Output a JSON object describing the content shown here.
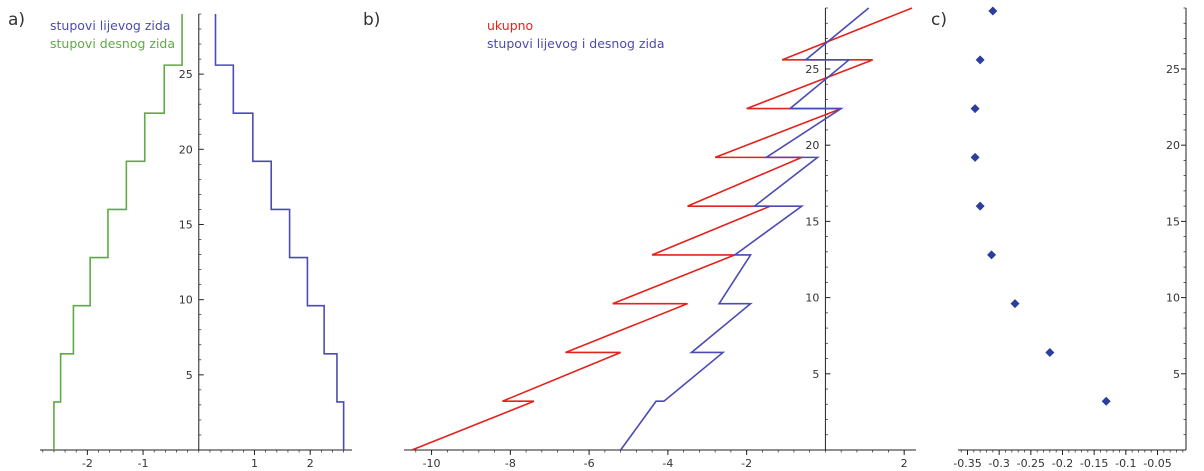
{
  "panel_labels": [
    "a)",
    "b)",
    "c)"
  ],
  "colors": {
    "blue": "#4b4bb3",
    "green": "#5faa46",
    "red": "#e3231c",
    "axis": "#222222",
    "marker": "#2b3e9e"
  },
  "chart_data": [
    {
      "type": "line",
      "label": "a)",
      "xlim": [
        -2.85,
        2.75
      ],
      "ylim": [
        0,
        29
      ],
      "xticks": [
        -2,
        -1,
        1,
        2
      ],
      "yticks": [
        5,
        10,
        15,
        20,
        25
      ],
      "series": [
        {
          "name": "stupovi lijevog zida",
          "color": "#4b4bb3",
          "points": [
            [
              0.3,
              29
            ],
            [
              0.3,
              25.6
            ],
            [
              0.62,
              25.6
            ],
            [
              0.62,
              22.4
            ],
            [
              0.97,
              22.4
            ],
            [
              0.97,
              19.2
            ],
            [
              1.3,
              19.2
            ],
            [
              1.3,
              16
            ],
            [
              1.63,
              16
            ],
            [
              1.63,
              12.8
            ],
            [
              1.95,
              12.8
            ],
            [
              1.95,
              9.6
            ],
            [
              2.25,
              9.6
            ],
            [
              2.25,
              6.4
            ],
            [
              2.48,
              6.4
            ],
            [
              2.48,
              3.2
            ],
            [
              2.6,
              3.2
            ],
            [
              2.6,
              0
            ]
          ]
        },
        {
          "name": "stupovi desnog zida",
          "color": "#5faa46",
          "points": [
            [
              -0.3,
              29
            ],
            [
              -0.3,
              25.6
            ],
            [
              -0.62,
              25.6
            ],
            [
              -0.62,
              22.4
            ],
            [
              -0.97,
              22.4
            ],
            [
              -0.97,
              19.2
            ],
            [
              -1.3,
              19.2
            ],
            [
              -1.3,
              16
            ],
            [
              -1.63,
              16
            ],
            [
              -1.63,
              12.8
            ],
            [
              -1.95,
              12.8
            ],
            [
              -1.95,
              9.6
            ],
            [
              -2.25,
              9.6
            ],
            [
              -2.25,
              6.4
            ],
            [
              -2.48,
              6.4
            ],
            [
              -2.48,
              3.2
            ],
            [
              -2.6,
              3.2
            ],
            [
              -2.6,
              0
            ]
          ]
        }
      ]
    },
    {
      "type": "line",
      "label": "b)",
      "xlim": [
        -10.7,
        2.3
      ],
      "ylim": [
        0,
        29
      ],
      "xticks": [
        -10,
        -8,
        -6,
        -4,
        -2,
        2
      ],
      "yticks": [
        5,
        10,
        15,
        20,
        25
      ],
      "series": [
        {
          "name": "ukupno",
          "color": "#e3231c",
          "points": [
            [
              -10.5,
              0
            ],
            [
              -7.4,
              3.2
            ],
            [
              -8.2,
              3.2
            ],
            [
              -5.2,
              6.4
            ],
            [
              -6.6,
              6.4
            ],
            [
              -3.5,
              9.6
            ],
            [
              -5.4,
              9.6
            ],
            [
              -2.3,
              12.8
            ],
            [
              -4.4,
              12.8
            ],
            [
              -1.4,
              16
            ],
            [
              -3.5,
              16
            ],
            [
              -0.6,
              19.2
            ],
            [
              -2.8,
              19.2
            ],
            [
              0.4,
              22.4
            ],
            [
              -2,
              22.4
            ],
            [
              1.2,
              25.6
            ],
            [
              -1.1,
              25.6
            ],
            [
              2.2,
              29
            ]
          ]
        },
        {
          "name": "stupovi lijevog i desnog zida",
          "color": "#4b4bb3",
          "points": [
            [
              -5.2,
              0
            ],
            [
              -4.3,
              3.2
            ],
            [
              -4.1,
              3.2
            ],
            [
              -2.6,
              6.4
            ],
            [
              -3.4,
              6.4
            ],
            [
              -1.9,
              9.6
            ],
            [
              -2.7,
              9.6
            ],
            [
              -1.9,
              12.8
            ],
            [
              -2.3,
              12.8
            ],
            [
              -0.6,
              16
            ],
            [
              -1.8,
              16
            ],
            [
              -0.2,
              19.2
            ],
            [
              -1.5,
              19.2
            ],
            [
              0.4,
              22.4
            ],
            [
              -0.9,
              22.4
            ],
            [
              0.6,
              25.6
            ],
            [
              -0.5,
              25.6
            ],
            [
              1.1,
              29
            ]
          ]
        }
      ]
    },
    {
      "type": "scatter",
      "label": "c)",
      "xlim": [
        -0.365,
        -0.005
      ],
      "ylim": [
        0,
        29
      ],
      "xticks": [
        -0.35,
        -0.3,
        -0.25,
        -0.2,
        -0.15,
        -0.1,
        -0.05
      ],
      "yticks": [
        5,
        10,
        15,
        20,
        25
      ],
      "series": [
        {
          "name": "",
          "color": "#2b3e9e",
          "points": [
            [
              -0.131,
              3.2
            ],
            [
              -0.22,
              6.4
            ],
            [
              -0.275,
              9.6
            ],
            [
              -0.312,
              12.8
            ],
            [
              -0.33,
              16
            ],
            [
              -0.338,
              19.2
            ],
            [
              -0.338,
              22.4
            ],
            [
              -0.33,
              25.6
            ],
            [
              -0.31,
              28.8
            ]
          ]
        }
      ]
    }
  ]
}
